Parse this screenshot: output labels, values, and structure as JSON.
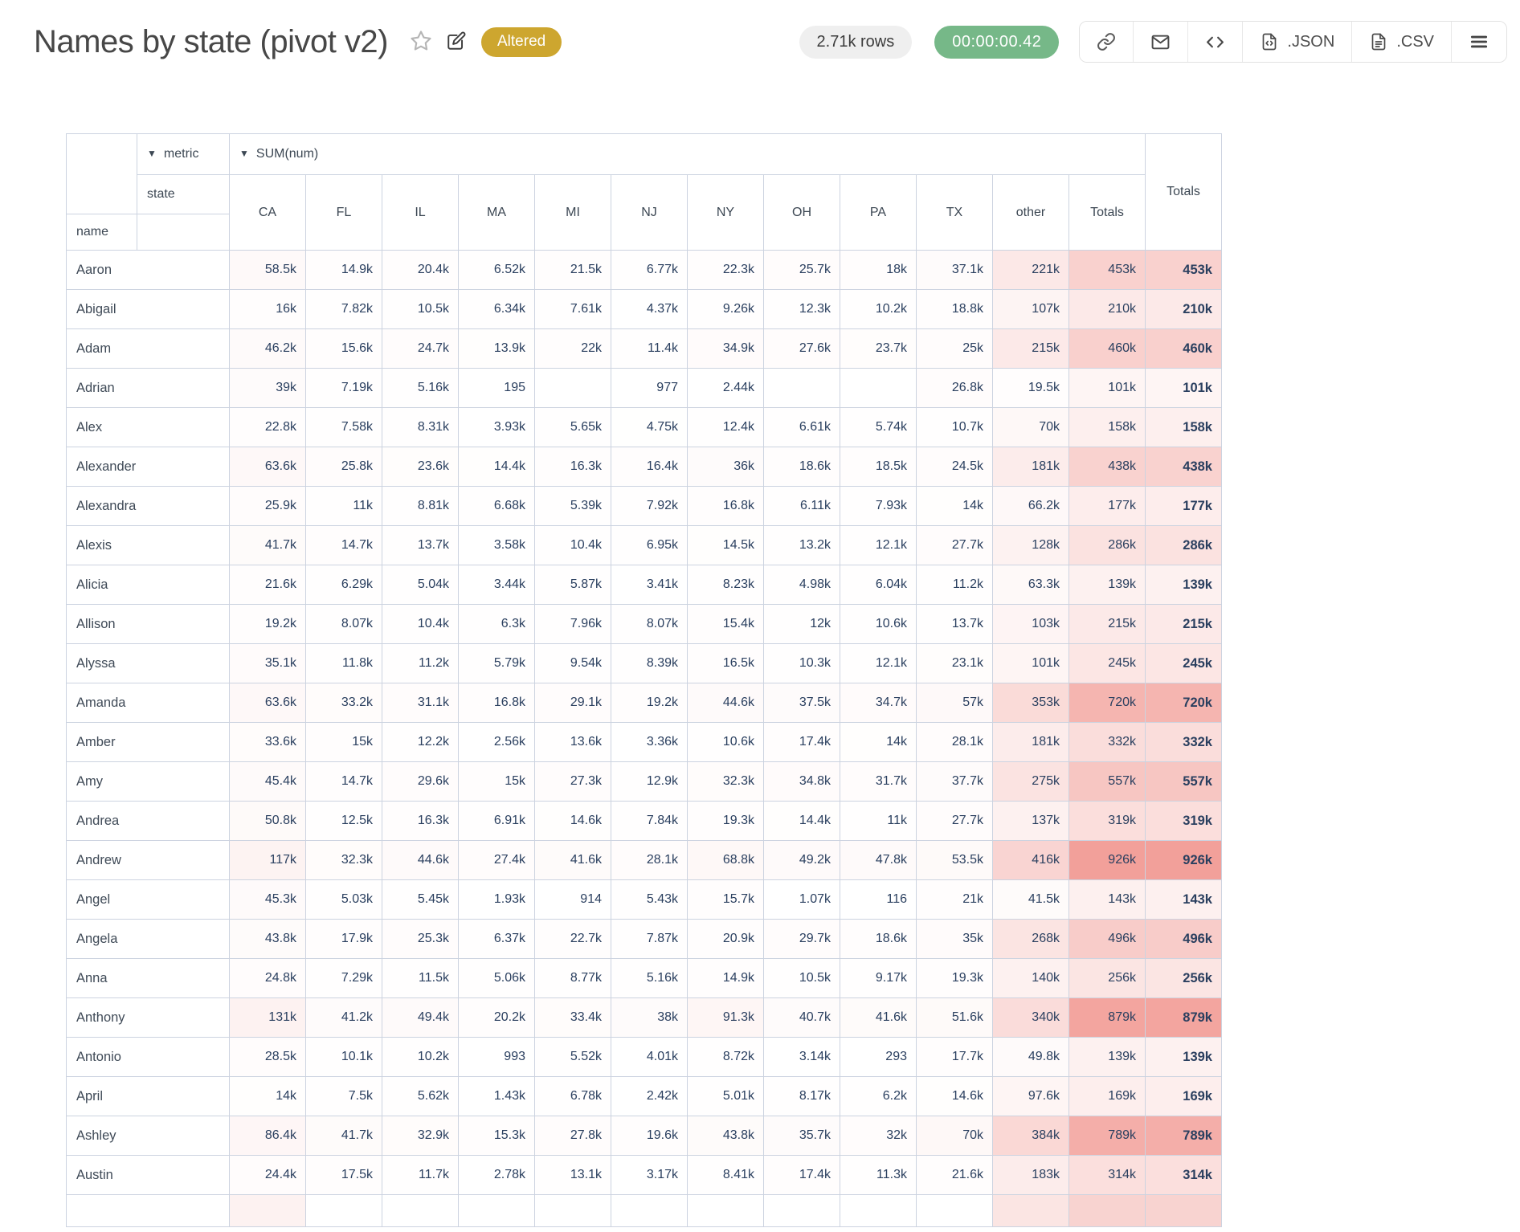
{
  "page": {
    "title": "Names by state (pivot v2)"
  },
  "badges": {
    "altered": "Altered",
    "rows": "2.71k rows",
    "timer": "00:00:00.42"
  },
  "toolbar": {
    "json_label": ".JSON",
    "csv_label": ".CSV"
  },
  "colors": {
    "altered_bg": "#cda62f",
    "rows_pill_bg": "#efefef",
    "timer_pill_bg": "#76b888",
    "heat_max": "#f2a09a",
    "table_border": "#ccd3e0",
    "number_text": "#2a3f5f"
  },
  "pivot": {
    "sort_icon": "▼",
    "metric_label": "metric",
    "sum_label": "SUM(num)",
    "state_label": "state",
    "name_label": "name",
    "totals_label": "Totals",
    "columns": [
      "CA",
      "FL",
      "IL",
      "MA",
      "MI",
      "NJ",
      "NY",
      "OH",
      "PA",
      "TX",
      "other",
      "Totals"
    ],
    "heat_max_value": 926000,
    "rows": [
      {
        "name": "Aaron",
        "cells": [
          "58.5k",
          "14.9k",
          "20.4k",
          "6.52k",
          "21.5k",
          "6.77k",
          "22.3k",
          "25.7k",
          "18k",
          "37.1k",
          "221k",
          "453k"
        ],
        "total": "453k"
      },
      {
        "name": "Abigail",
        "cells": [
          "16k",
          "7.82k",
          "10.5k",
          "6.34k",
          "7.61k",
          "4.37k",
          "9.26k",
          "12.3k",
          "10.2k",
          "18.8k",
          "107k",
          "210k"
        ],
        "total": "210k"
      },
      {
        "name": "Adam",
        "cells": [
          "46.2k",
          "15.6k",
          "24.7k",
          "13.9k",
          "22k",
          "11.4k",
          "34.9k",
          "27.6k",
          "23.7k",
          "25k",
          "215k",
          "460k"
        ],
        "total": "460k"
      },
      {
        "name": "Adrian",
        "cells": [
          "39k",
          "7.19k",
          "5.16k",
          "195",
          "",
          "977",
          "2.44k",
          "",
          "",
          "26.8k",
          "19.5k",
          "101k"
        ],
        "total": "101k"
      },
      {
        "name": "Alex",
        "cells": [
          "22.8k",
          "7.58k",
          "8.31k",
          "3.93k",
          "5.65k",
          "4.75k",
          "12.4k",
          "6.61k",
          "5.74k",
          "10.7k",
          "70k",
          "158k"
        ],
        "total": "158k"
      },
      {
        "name": "Alexander",
        "cells": [
          "63.6k",
          "25.8k",
          "23.6k",
          "14.4k",
          "16.3k",
          "16.4k",
          "36k",
          "18.6k",
          "18.5k",
          "24.5k",
          "181k",
          "438k"
        ],
        "total": "438k"
      },
      {
        "name": "Alexandra",
        "cells": [
          "25.9k",
          "11k",
          "8.81k",
          "6.68k",
          "5.39k",
          "7.92k",
          "16.8k",
          "6.11k",
          "7.93k",
          "14k",
          "66.2k",
          "177k"
        ],
        "total": "177k"
      },
      {
        "name": "Alexis",
        "cells": [
          "41.7k",
          "14.7k",
          "13.7k",
          "3.58k",
          "10.4k",
          "6.95k",
          "14.5k",
          "13.2k",
          "12.1k",
          "27.7k",
          "128k",
          "286k"
        ],
        "total": "286k"
      },
      {
        "name": "Alicia",
        "cells": [
          "21.6k",
          "6.29k",
          "5.04k",
          "3.44k",
          "5.87k",
          "3.41k",
          "8.23k",
          "4.98k",
          "6.04k",
          "11.2k",
          "63.3k",
          "139k"
        ],
        "total": "139k"
      },
      {
        "name": "Allison",
        "cells": [
          "19.2k",
          "8.07k",
          "10.4k",
          "6.3k",
          "7.96k",
          "8.07k",
          "15.4k",
          "12k",
          "10.6k",
          "13.7k",
          "103k",
          "215k"
        ],
        "total": "215k"
      },
      {
        "name": "Alyssa",
        "cells": [
          "35.1k",
          "11.8k",
          "11.2k",
          "5.79k",
          "9.54k",
          "8.39k",
          "16.5k",
          "10.3k",
          "12.1k",
          "23.1k",
          "101k",
          "245k"
        ],
        "total": "245k"
      },
      {
        "name": "Amanda",
        "cells": [
          "63.6k",
          "33.2k",
          "31.1k",
          "16.8k",
          "29.1k",
          "19.2k",
          "44.6k",
          "37.5k",
          "34.7k",
          "57k",
          "353k",
          "720k"
        ],
        "total": "720k"
      },
      {
        "name": "Amber",
        "cells": [
          "33.6k",
          "15k",
          "12.2k",
          "2.56k",
          "13.6k",
          "3.36k",
          "10.6k",
          "17.4k",
          "14k",
          "28.1k",
          "181k",
          "332k"
        ],
        "total": "332k"
      },
      {
        "name": "Amy",
        "cells": [
          "45.4k",
          "14.7k",
          "29.6k",
          "15k",
          "27.3k",
          "12.9k",
          "32.3k",
          "34.8k",
          "31.7k",
          "37.7k",
          "275k",
          "557k"
        ],
        "total": "557k"
      },
      {
        "name": "Andrea",
        "cells": [
          "50.8k",
          "12.5k",
          "16.3k",
          "6.91k",
          "14.6k",
          "7.84k",
          "19.3k",
          "14.4k",
          "11k",
          "27.7k",
          "137k",
          "319k"
        ],
        "total": "319k"
      },
      {
        "name": "Andrew",
        "cells": [
          "117k",
          "32.3k",
          "44.6k",
          "27.4k",
          "41.6k",
          "28.1k",
          "68.8k",
          "49.2k",
          "47.8k",
          "53.5k",
          "416k",
          "926k"
        ],
        "total": "926k"
      },
      {
        "name": "Angel",
        "cells": [
          "45.3k",
          "5.03k",
          "5.45k",
          "1.93k",
          "914",
          "5.43k",
          "15.7k",
          "1.07k",
          "116",
          "21k",
          "41.5k",
          "143k"
        ],
        "total": "143k"
      },
      {
        "name": "Angela",
        "cells": [
          "43.8k",
          "17.9k",
          "25.3k",
          "6.37k",
          "22.7k",
          "7.87k",
          "20.9k",
          "29.7k",
          "18.6k",
          "35k",
          "268k",
          "496k"
        ],
        "total": "496k"
      },
      {
        "name": "Anna",
        "cells": [
          "24.8k",
          "7.29k",
          "11.5k",
          "5.06k",
          "8.77k",
          "5.16k",
          "14.9k",
          "10.5k",
          "9.17k",
          "19.3k",
          "140k",
          "256k"
        ],
        "total": "256k"
      },
      {
        "name": "Anthony",
        "cells": [
          "131k",
          "41.2k",
          "49.4k",
          "20.2k",
          "33.4k",
          "38k",
          "91.3k",
          "40.7k",
          "41.6k",
          "51.6k",
          "340k",
          "879k"
        ],
        "total": "879k"
      },
      {
        "name": "Antonio",
        "cells": [
          "28.5k",
          "10.1k",
          "10.2k",
          "993",
          "5.52k",
          "4.01k",
          "8.72k",
          "3.14k",
          "293",
          "17.7k",
          "49.8k",
          "139k"
        ],
        "total": "139k"
      },
      {
        "name": "April",
        "cells": [
          "14k",
          "7.5k",
          "5.62k",
          "1.43k",
          "6.78k",
          "2.42k",
          "5.01k",
          "8.17k",
          "6.2k",
          "14.6k",
          "97.6k",
          "169k"
        ],
        "total": "169k"
      },
      {
        "name": "Ashley",
        "cells": [
          "86.4k",
          "41.7k",
          "32.9k",
          "15.3k",
          "27.8k",
          "19.6k",
          "43.8k",
          "35.7k",
          "32k",
          "70k",
          "384k",
          "789k"
        ],
        "total": "789k"
      },
      {
        "name": "Austin",
        "cells": [
          "24.4k",
          "17.5k",
          "11.7k",
          "2.78k",
          "13.1k",
          "3.17k",
          "8.41k",
          "17.4k",
          "11.3k",
          "21.6k",
          "183k",
          "314k"
        ],
        "total": "314k"
      }
    ]
  }
}
